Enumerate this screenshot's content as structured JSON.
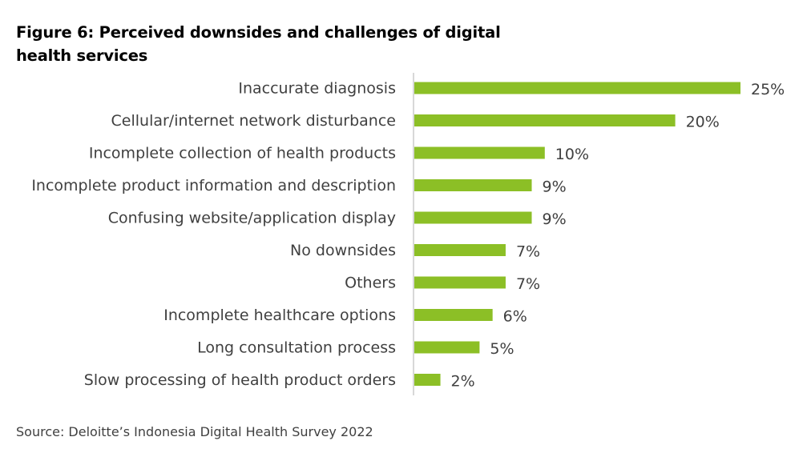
{
  "figure": {
    "title": "Figure 6: Perceived downsides and challenges of digital health services",
    "source": "Source: Deloitte’s Indonesia Digital Health Survey 2022"
  },
  "colors": {
    "bar": "#8CBF26",
    "axis": "#BFBFBF",
    "text": "#404040"
  },
  "chart_data": {
    "type": "bar",
    "orientation": "horizontal",
    "title": "Figure 6: Perceived downsides and challenges of digital health services",
    "xlabel": "",
    "ylabel": "",
    "unit": "%",
    "xlim": [
      0,
      25
    ],
    "grid": false,
    "categories": [
      "Inaccurate diagnosis",
      "Cellular/internet network disturbance",
      "Incomplete collection of health products",
      "Incomplete product information and description",
      "Confusing website/application display",
      "No downsides",
      "Others",
      "Incomplete healthcare options",
      "Long consultation process",
      "Slow processing of health product orders"
    ],
    "values": [
      25,
      20,
      10,
      9,
      9,
      7,
      7,
      6,
      5,
      2
    ],
    "value_labels": [
      "25%",
      "20%",
      "10%",
      "9%",
      "9%",
      "7%",
      "7%",
      "6%",
      "5%",
      "2%"
    ]
  }
}
